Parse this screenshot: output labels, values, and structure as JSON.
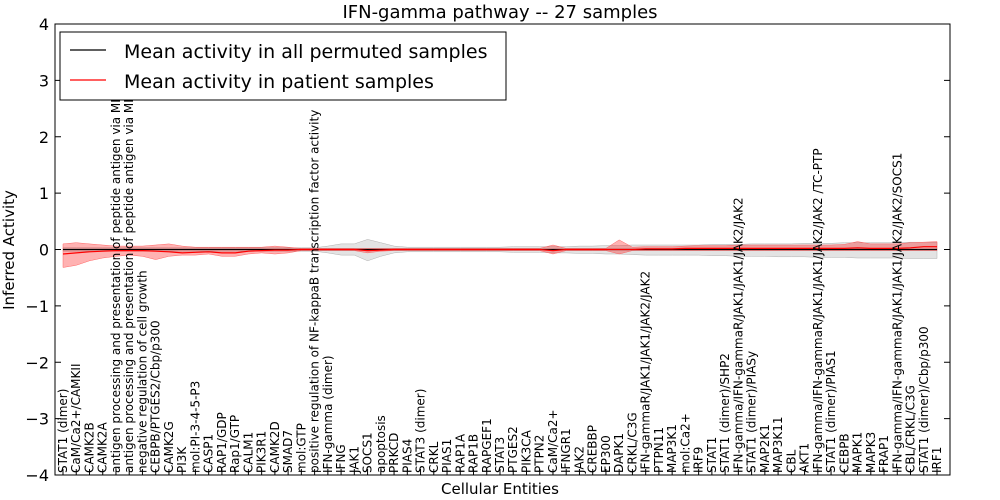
{
  "chart_data": {
    "type": "line",
    "title": "IFN-gamma pathway -- 27 samples",
    "xlabel": "Cellular Entities",
    "ylabel": "Inferred Activity",
    "ylim": [
      -4,
      4
    ],
    "yticks": [
      -4,
      -3,
      -2,
      -1,
      0,
      1,
      2,
      3,
      4
    ],
    "ytick_labels": [
      "−4",
      "−3",
      "−2",
      "−1",
      "0",
      "1",
      "2",
      "3",
      "4"
    ],
    "legend_position": "top-left",
    "categories": [
      "STAT1 (dimer)",
      "CaM/Ca2+/CAMKII",
      "CAMK2B",
      "CAMK2A",
      "antigen processing and presentation of peptide antigen via MHC class I",
      "antigen processing and presentation of peptide antigen via MHC class II",
      "negative regulation of cell growth",
      "CEBPB/PTGES2/Cbp/p300",
      "CAMK2G",
      "PI3K",
      "mol:PI-3-4-5-P3",
      "CASP1",
      "RAP1/GDP",
      "Rap1/GTP",
      "CALM1",
      "PIK3R1",
      "CAMK2D",
      "SMAD7",
      "mol:GTP",
      "positive regulation of NF-kappaB transcription factor activity",
      "IFN-gamma (dimer)",
      "IFNG",
      "JAK1",
      "SOCS1",
      "apoptosis",
      "PRKCD",
      "PIAS4",
      "STAT3 (dimer)",
      "CRKL",
      "PIAS1",
      "RAP1A",
      "RAP1B",
      "RAPGEF1",
      "STAT3",
      "PTGES2",
      "PIK3CA",
      "PTPN2",
      "CaM/Ca2+",
      "IFNGR1",
      "JAK2",
      "CREBBP",
      "EP300",
      "DAPK1",
      "CRKL/C3G",
      "IFN-gammaR/JAK1/JAK1/JAK2/JAK2",
      "PTPN11",
      "MAP3K1",
      "mol:Ca2+",
      "IRF9",
      "STAT1",
      "STAT1 (dimer)/SHP2",
      "IFN-gamma/IFN-gammaR/JAK1/JAK1/JAK2/JAK2",
      "STAT1 (dimer)/PIASy",
      "MAP2K1",
      "MAP3K11",
      "CBL",
      "AKT1",
      "IFN-gamma/IFN-gammaR/JAK1/JAK1/JAK2/JAK2 /TC-PTP",
      "STAT1 (dimer)/PIAS1",
      "CEBPB",
      "MAPK1",
      "MAPK3",
      "FRAP1",
      "IFN-gamma/IFN-gammaR/JAK1/JAK1/JAK2/JAK2/SOCS1",
      "CBL/CRKL/C3G",
      "STAT1 (dimer)/Cbp/p300",
      "IRF1"
    ],
    "series": [
      {
        "name": "Mean activity in all permuted samples",
        "color": "#000000",
        "values": [
          0.0,
          0.0,
          0.0,
          0.0,
          0.0,
          0.0,
          0.0,
          0.0,
          0.0,
          0.0,
          0.0,
          0.0,
          0.0,
          0.0,
          0.0,
          0.0,
          0.0,
          0.0,
          0.0,
          0.0,
          0.0,
          0.0,
          0.0,
          0.0,
          0.0,
          0.0,
          0.0,
          0.0,
          0.0,
          0.0,
          0.0,
          0.0,
          0.0,
          0.0,
          0.0,
          0.0,
          0.0,
          0.0,
          0.0,
          0.0,
          0.0,
          0.0,
          0.0,
          0.0,
          0.0,
          0.0,
          0.0,
          0.0,
          0.0,
          0.0,
          0.0,
          0.0,
          0.0,
          0.0,
          0.0,
          0.0,
          0.0,
          0.0,
          0.0,
          0.0,
          0.0,
          0.0,
          0.0,
          0.0,
          0.0,
          0.0,
          0.0
        ],
        "band_low": [
          -0.03,
          -0.03,
          -0.03,
          -0.03,
          -0.03,
          -0.03,
          -0.03,
          -0.03,
          -0.03,
          -0.03,
          -0.03,
          -0.03,
          -0.03,
          -0.03,
          -0.03,
          -0.03,
          -0.03,
          -0.03,
          -0.03,
          -0.03,
          -0.06,
          -0.1,
          -0.1,
          -0.2,
          -0.12,
          -0.06,
          -0.04,
          -0.04,
          -0.04,
          -0.04,
          -0.04,
          -0.04,
          -0.04,
          -0.04,
          -0.05,
          -0.05,
          -0.05,
          -0.06,
          -0.06,
          -0.07,
          -0.07,
          -0.08,
          -0.08,
          -0.09,
          -0.1,
          -0.1,
          -0.1,
          -0.1,
          -0.1,
          -0.11,
          -0.11,
          -0.12,
          -0.12,
          -0.12,
          -0.13,
          -0.13,
          -0.13,
          -0.14,
          -0.14,
          -0.14,
          -0.15,
          -0.15,
          -0.15,
          -0.15,
          -0.16,
          -0.16,
          -0.16
        ],
        "band_high": [
          0.03,
          0.03,
          0.03,
          0.03,
          0.03,
          0.03,
          0.03,
          0.03,
          0.03,
          0.03,
          0.03,
          0.03,
          0.03,
          0.03,
          0.03,
          0.03,
          0.03,
          0.03,
          0.03,
          0.03,
          0.06,
          0.1,
          0.1,
          0.18,
          0.12,
          0.06,
          0.04,
          0.04,
          0.04,
          0.04,
          0.04,
          0.04,
          0.04,
          0.04,
          0.05,
          0.05,
          0.05,
          0.05,
          0.05,
          0.06,
          0.06,
          0.07,
          0.07,
          0.08,
          0.08,
          0.08,
          0.08,
          0.08,
          0.08,
          0.09,
          0.09,
          0.09,
          0.1,
          0.1,
          0.1,
          0.1,
          0.11,
          0.11,
          0.11,
          0.12,
          0.12,
          0.12,
          0.12,
          0.12,
          0.13,
          0.13,
          0.13
        ]
      },
      {
        "name": "Mean activity in patient samples",
        "color": "#ff0000",
        "values": [
          -0.08,
          -0.06,
          -0.04,
          -0.03,
          -0.02,
          -0.02,
          -0.02,
          -0.03,
          -0.04,
          -0.06,
          -0.05,
          -0.04,
          -0.06,
          -0.06,
          -0.03,
          -0.02,
          -0.01,
          -0.01,
          0.0,
          0.0,
          0.0,
          0.0,
          0.0,
          -0.02,
          -0.01,
          0.0,
          0.0,
          0.0,
          0.0,
          0.0,
          0.0,
          0.0,
          0.0,
          0.0,
          0.0,
          0.0,
          0.0,
          -0.02,
          0.0,
          0.0,
          0.0,
          0.0,
          0.0,
          0.0,
          0.01,
          0.01,
          0.01,
          0.02,
          0.02,
          0.02,
          0.02,
          0.02,
          0.02,
          0.02,
          0.02,
          0.02,
          0.02,
          0.02,
          0.02,
          0.02,
          0.03,
          0.02,
          0.02,
          0.02,
          0.03,
          0.05,
          0.05
        ],
        "band_low": [
          -0.32,
          -0.28,
          -0.2,
          -0.15,
          -0.12,
          -0.1,
          -0.12,
          -0.18,
          -0.12,
          -0.1,
          -0.1,
          -0.08,
          -0.12,
          -0.12,
          -0.08,
          -0.06,
          -0.08,
          -0.06,
          -0.02,
          -0.02,
          -0.02,
          -0.02,
          -0.02,
          -0.06,
          -0.03,
          -0.02,
          -0.02,
          -0.02,
          -0.02,
          -0.02,
          -0.02,
          -0.02,
          -0.02,
          -0.02,
          -0.02,
          -0.02,
          -0.02,
          -0.08,
          -0.02,
          -0.02,
          -0.02,
          -0.02,
          -0.08,
          -0.02,
          -0.02,
          -0.02,
          -0.02,
          -0.02,
          -0.02,
          -0.02,
          -0.02,
          -0.02,
          -0.02,
          -0.02,
          -0.02,
          -0.02,
          -0.02,
          -0.02,
          -0.02,
          -0.02,
          -0.02,
          -0.02,
          -0.02,
          -0.02,
          -0.02,
          -0.02,
          -0.02
        ],
        "band_high": [
          0.1,
          0.12,
          0.1,
          0.08,
          0.06,
          0.06,
          0.06,
          0.08,
          0.1,
          0.06,
          0.04,
          0.04,
          0.04,
          0.04,
          0.04,
          0.04,
          0.06,
          0.04,
          0.02,
          0.02,
          0.02,
          0.02,
          0.02,
          0.02,
          0.02,
          0.02,
          0.02,
          0.02,
          0.02,
          0.02,
          0.02,
          0.02,
          0.02,
          0.02,
          0.02,
          0.02,
          0.02,
          0.08,
          0.02,
          0.02,
          0.02,
          0.02,
          0.17,
          0.04,
          0.05,
          0.05,
          0.05,
          0.06,
          0.07,
          0.07,
          0.07,
          0.08,
          0.08,
          0.08,
          0.08,
          0.08,
          0.08,
          0.08,
          0.08,
          0.09,
          0.14,
          0.1,
          0.1,
          0.1,
          0.12,
          0.13,
          0.14
        ]
      }
    ]
  }
}
